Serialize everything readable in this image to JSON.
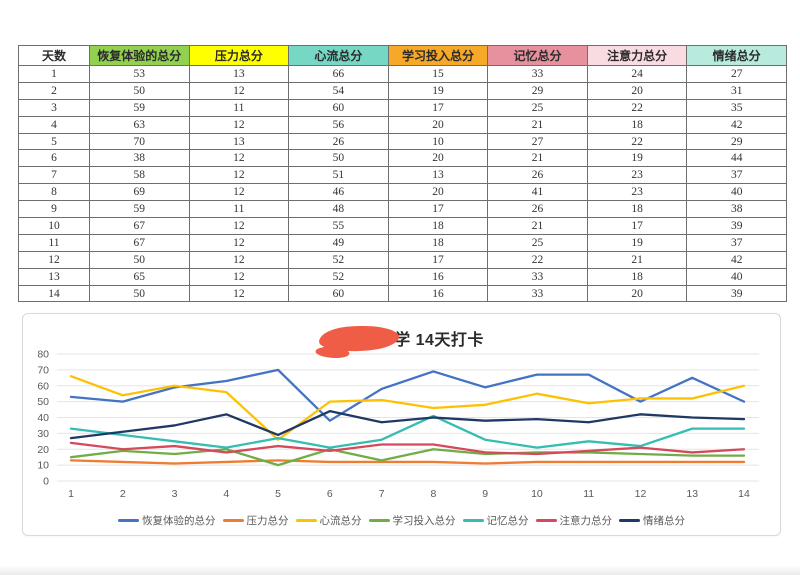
{
  "table": {
    "columns": [
      {
        "label": "天数",
        "bg": "#ffffff"
      },
      {
        "label": "恢复体验的总分",
        "bg": "#92d050"
      },
      {
        "label": "压力总分",
        "bg": "#ffff00"
      },
      {
        "label": "心流总分",
        "bg": "#76d7c4"
      },
      {
        "label": "学习投入总分",
        "bg": "#f6a828"
      },
      {
        "label": "记忆总分",
        "bg": "#e8919e"
      },
      {
        "label": "注意力总分",
        "bg": "#f9dce2"
      },
      {
        "label": "情绪总分",
        "bg": "#b8ebdd"
      }
    ],
    "rows": [
      [
        1,
        53,
        13,
        66,
        15,
        33,
        24,
        27
      ],
      [
        2,
        50,
        12,
        54,
        19,
        29,
        20,
        31
      ],
      [
        3,
        59,
        11,
        60,
        17,
        25,
        22,
        35
      ],
      [
        4,
        63,
        12,
        56,
        20,
        21,
        18,
        42
      ],
      [
        5,
        70,
        13,
        26,
        10,
        27,
        22,
        29
      ],
      [
        6,
        38,
        12,
        50,
        20,
        21,
        19,
        44
      ],
      [
        7,
        58,
        12,
        51,
        13,
        26,
        23,
        37
      ],
      [
        8,
        69,
        12,
        46,
        20,
        41,
        23,
        40
      ],
      [
        9,
        59,
        11,
        48,
        17,
        26,
        18,
        38
      ],
      [
        10,
        67,
        12,
        55,
        18,
        21,
        17,
        39
      ],
      [
        11,
        67,
        12,
        49,
        18,
        25,
        19,
        37
      ],
      [
        12,
        50,
        12,
        52,
        17,
        22,
        21,
        42
      ],
      [
        13,
        65,
        12,
        52,
        16,
        33,
        18,
        40
      ],
      [
        14,
        50,
        12,
        60,
        16,
        33,
        20,
        39
      ]
    ]
  },
  "chart": {
    "title_visible": "学 14天打卡",
    "redaction_color": "#ef5d47",
    "tick_color": "#595959",
    "grid_color": "#e5e5e5"
  },
  "chart_data": {
    "type": "line",
    "title": "学 14天打卡",
    "x": [
      1,
      2,
      3,
      4,
      5,
      6,
      7,
      8,
      9,
      10,
      11,
      12,
      13,
      14
    ],
    "series": [
      {
        "name": "恢复体验的总分",
        "color": "#4472c4",
        "values": [
          53,
          50,
          59,
          63,
          70,
          38,
          58,
          69,
          59,
          67,
          67,
          50,
          65,
          50
        ]
      },
      {
        "name": "压力总分",
        "color": "#ed7d31",
        "values": [
          13,
          12,
          11,
          12,
          13,
          12,
          12,
          12,
          11,
          12,
          12,
          12,
          12,
          12
        ]
      },
      {
        "name": "心流总分",
        "color": "#fdc104",
        "values": [
          66,
          54,
          60,
          56,
          26,
          50,
          51,
          46,
          48,
          55,
          49,
          52,
          52,
          60
        ]
      },
      {
        "name": "学习投入总分",
        "color": "#70ad47",
        "values": [
          15,
          19,
          17,
          20,
          10,
          20,
          13,
          20,
          17,
          18,
          18,
          17,
          16,
          16
        ]
      },
      {
        "name": "记忆总分",
        "color": "#35bdb2",
        "values": [
          33,
          29,
          25,
          21,
          27,
          21,
          26,
          41,
          26,
          21,
          25,
          22,
          33,
          33
        ]
      },
      {
        "name": "注意力总分",
        "color": "#d6495b",
        "values": [
          24,
          20,
          22,
          18,
          22,
          19,
          23,
          23,
          18,
          17,
          19,
          21,
          18,
          20
        ]
      },
      {
        "name": "情绪总分",
        "color": "#1f3864",
        "values": [
          27,
          31,
          35,
          42,
          29,
          44,
          37,
          40,
          38,
          39,
          37,
          42,
          40,
          39
        ]
      }
    ],
    "ylim": [
      0,
      80
    ],
    "yticks": [
      0,
      10,
      20,
      30,
      40,
      50,
      60,
      70,
      80
    ],
    "xlabel": "",
    "ylabel": "",
    "grid": true,
    "legend_position": "bottom"
  }
}
